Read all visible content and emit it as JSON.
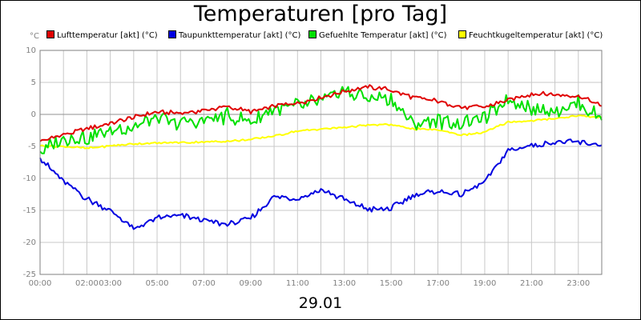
{
  "chart_data": {
    "type": "line",
    "title": "Temperaturen [pro Tag]",
    "unit_label": "°C",
    "xlabel": "29.01",
    "ylabel": "°C",
    "ylim": [
      -25,
      10
    ],
    "xlim": [
      0,
      24
    ],
    "y_ticks": [
      10,
      5,
      0,
      -5,
      -10,
      -15,
      -20,
      -25
    ],
    "x_ticks": [
      {
        "t": 0,
        "label": "00:00"
      },
      {
        "t": 2,
        "label": "02:00"
      },
      {
        "t": 3,
        "label": "03:00"
      },
      {
        "t": 5,
        "label": "05:00"
      },
      {
        "t": 7,
        "label": "07:00"
      },
      {
        "t": 9,
        "label": "09:00"
      },
      {
        "t": 11,
        "label": "11:00"
      },
      {
        "t": 13,
        "label": "13:00"
      },
      {
        "t": 15,
        "label": "15:00"
      },
      {
        "t": 17,
        "label": "17:00"
      },
      {
        "t": 19,
        "label": "19:00"
      },
      {
        "t": 21,
        "label": "21:00"
      },
      {
        "t": 23,
        "label": "23:00"
      }
    ],
    "grid": true,
    "legend_position": "top",
    "series": [
      {
        "name": "Lufttemperatur [akt] (°C)",
        "color": "#e00000",
        "x": [
          0,
          1,
          2,
          3,
          4,
          5,
          6,
          7,
          8,
          9,
          10,
          11,
          12,
          13,
          14,
          15,
          16,
          17,
          18,
          19,
          20,
          21,
          22,
          23,
          24
        ],
        "values": [
          -4.2,
          -3.2,
          -2.2,
          -1.4,
          -0.5,
          0.4,
          0.2,
          0.6,
          1.2,
          0.4,
          1.3,
          1.8,
          2.6,
          3.6,
          4.3,
          3.8,
          2.6,
          2.1,
          1.1,
          1.2,
          2.2,
          3.2,
          3.1,
          2.9,
          1.3
        ]
      },
      {
        "name": "Taupunkttemperatur [akt] (°C)",
        "color": "#0000e0",
        "x": [
          0,
          1,
          2,
          3,
          4,
          5,
          6,
          7,
          8,
          9,
          10,
          11,
          12,
          13,
          14,
          15,
          16,
          17,
          18,
          19,
          20,
          21,
          22,
          23,
          24
        ],
        "values": [
          -6.8,
          -10.5,
          -13.2,
          -15,
          -17.9,
          -16.2,
          -15.8,
          -16.5,
          -17.2,
          -16.3,
          -12.8,
          -13.2,
          -11.8,
          -13.3,
          -14.8,
          -14.7,
          -12.5,
          -12,
          -12.6,
          -10.5,
          -5.7,
          -4.8,
          -4.3,
          -4.4,
          -4.8
        ]
      },
      {
        "name": "Gefuehlte Temperatur [akt] (°C)",
        "color": "#00e000",
        "x": [
          0,
          1,
          2,
          3,
          4,
          5,
          6,
          7,
          8,
          9,
          10,
          11,
          12,
          13,
          14,
          15,
          16,
          17,
          18,
          19,
          20,
          21,
          22,
          23,
          24
        ],
        "values": [
          -5.8,
          -3.6,
          -3.6,
          -2.6,
          -1.9,
          -0.8,
          -1.4,
          -0.9,
          -0.3,
          -1.2,
          0.8,
          1.4,
          2.1,
          3.6,
          2.6,
          2.5,
          -1.7,
          -0.9,
          -1.4,
          -0.6,
          2.6,
          0.9,
          0.6,
          1.7,
          -0.9
        ]
      },
      {
        "name": "Feuchtkugeltemperatur [akt] (°C)",
        "color": "#ffff00",
        "x": [
          0,
          1,
          2,
          3,
          4,
          5,
          6,
          7,
          8,
          9,
          10,
          11,
          12,
          13,
          14,
          15,
          16,
          17,
          18,
          19,
          20,
          21,
          22,
          23,
          24
        ],
        "values": [
          -4.9,
          -5,
          -5.3,
          -4.9,
          -4.6,
          -4.5,
          -4.4,
          -4.3,
          -4.2,
          -3.9,
          -3.4,
          -2.6,
          -2.3,
          -2,
          -1.7,
          -1.6,
          -2.3,
          -2.4,
          -3.2,
          -2.8,
          -1.2,
          -1,
          -0.6,
          -0.2,
          -0.5
        ]
      }
    ]
  }
}
